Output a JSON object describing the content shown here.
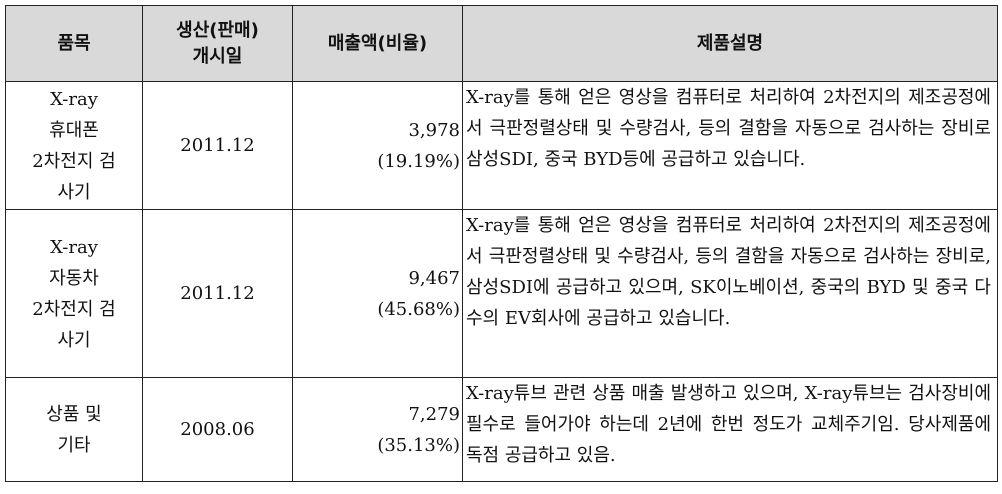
{
  "headers": {
    "product": "품목",
    "launch": "생산(판매)\n개시일",
    "sales": "매출액(비율)",
    "description": "제품설명"
  },
  "rows": [
    {
      "product": "X-ray\n휴대폰\n2차전지 검\n사기",
      "launch": "2011.12",
      "sales_amount": "3,978",
      "sales_ratio": "(19.19%)",
      "description": "X-ray를 통해 얻은 영상을 컴퓨터로 처리하여 2차전지의 제조공정에서 극판정렬상태 및 수량검사, 등의 결함을 자동으로 검사하는 장비로 삼성SDI, 중국 BYD등에 공급하고 있습니다."
    },
    {
      "product": "X-ray\n자동차\n2차전지 검\n사기",
      "launch": "2011.12",
      "sales_amount": "9,467",
      "sales_ratio": "(45.68%)",
      "description": "X-ray를 통해 얻은 영상을 컴퓨터로 처리하여 2차전지의 제조공정에서 극판정렬상태 및 수량검사, 등의 결함을 자동으로 검사하는 장비로, 삼성SDI에 공급하고 있으며, SK이노베이션, 중국의 BYD 및 중국 다수의 EV회사에 공급하고 있습니다."
    },
    {
      "product": "상품 및\n기타",
      "launch": "2008.06",
      "sales_amount": "7,279",
      "sales_ratio": "(35.13%)",
      "description": "X-ray튜브 관련 상품 매출 발생하고 있으며, X-ray튜브는 검사장비에 필수로 들어가야 하는데 2년에 한번 정도가 교체주기임. 당사제품에 독점 공급하고 있음."
    }
  ]
}
